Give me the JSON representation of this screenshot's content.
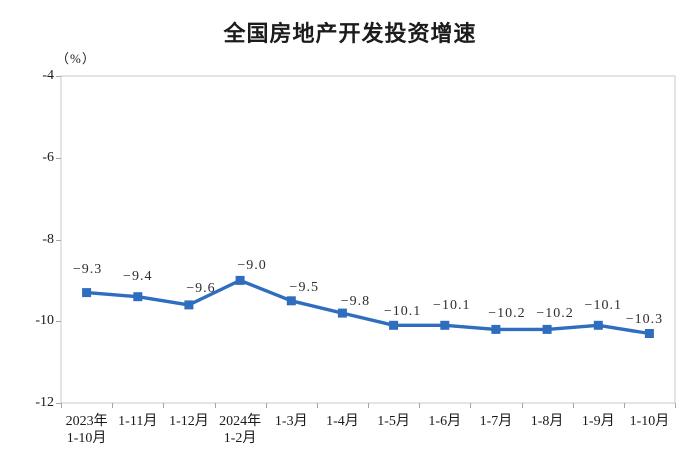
{
  "chart": {
    "title": "全国房地产开发投资增速",
    "unit_label": "（%）"
  },
  "chart_data": {
    "type": "line",
    "title": "全国房地产开发投资增速",
    "ylabel": "（%）",
    "categories": [
      "2023年\n1-10月",
      "1-11月",
      "1-12月",
      "2024年\n1-2月",
      "1-3月",
      "1-4月",
      "1-5月",
      "1-6月",
      "1-7月",
      "1-8月",
      "1-9月",
      "1-10月"
    ],
    "values": [
      -9.3,
      -9.4,
      -9.6,
      -9.0,
      -9.5,
      -9.8,
      -10.1,
      -10.1,
      -10.2,
      -10.2,
      -10.1,
      -10.3
    ],
    "data_labels": [
      "−9.3",
      "−9.4",
      "−9.6",
      "−9.0",
      "−9.5",
      "−9.8",
      "−10.1",
      "−10.1",
      "−10.2",
      "−10.2",
      "−10.1",
      "−10.3"
    ],
    "ylim": [
      -12,
      -4
    ],
    "yticks": [
      -4,
      -6,
      -8,
      -10,
      -12
    ],
    "ytick_labels": [
      "-4",
      "-6",
      "-8",
      "-10",
      "-12"
    ],
    "grid": false,
    "legend": false,
    "line_color": "#2f6dbe",
    "marker": "square",
    "marker_color": "#2f6dbe",
    "frame_color": "#c9c9c9",
    "tick_color": "#a6a6a6",
    "text_color": "#1a1a1a"
  }
}
